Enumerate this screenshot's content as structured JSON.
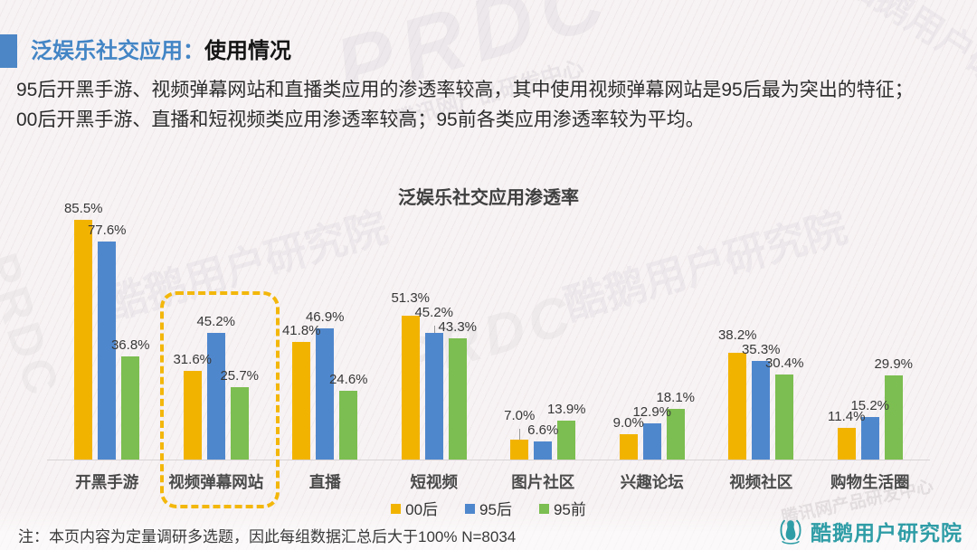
{
  "header": {
    "title_highlight": "泛娱乐社交应用：",
    "title_rest": "使用情况",
    "body": "95后开黑手游、视频弹幕网站和直播类应用的渗透率较高，其中使用视频弹幕网站是95后最为突出的特征；00后开黑手游、直播和短视频类应用渗透率较高；95前各类应用渗透率较为平均。"
  },
  "chart_data": {
    "type": "bar",
    "title": "泛娱乐社交应用渗透率",
    "categories": [
      "开黑手游",
      "视频弹幕网站",
      "直播",
      "短视频",
      "图片社区",
      "兴趣论坛",
      "视频社区",
      "购物生活圈"
    ],
    "series": [
      {
        "name": "00后",
        "color": "#f2b300",
        "values": [
          85.5,
          31.6,
          41.8,
          51.3,
          7.0,
          9.0,
          38.2,
          11.4
        ]
      },
      {
        "name": "95后",
        "color": "#4f87cd",
        "values": [
          77.6,
          45.2,
          46.9,
          45.2,
          6.6,
          12.9,
          35.3,
          15.2
        ]
      },
      {
        "name": "95前",
        "color": "#7cbe51",
        "values": [
          36.8,
          25.7,
          24.6,
          43.3,
          13.9,
          18.1,
          30.4,
          29.9
        ]
      }
    ],
    "value_suffix": "%",
    "ylim": [
      0,
      90
    ],
    "grid": false,
    "legend_position": "bottom",
    "highlight_category": "视频弹幕网站",
    "highlight_border_color": "#f3b70b"
  },
  "footer": {
    "note": "注：本页内容为定量调研多选题，因此每组数据汇总后大于100%  N=8034",
    "logo_text": "酷鹅用户研究院"
  },
  "watermarks": {
    "prdc": "PRDC",
    "dept": "腾讯网产品研发中心",
    "brand": "酷鹅用户研究院"
  },
  "theme": {
    "accent_blue": "#4385c5",
    "logo_teal": "#2f9da6",
    "background": "#f7f2f3"
  }
}
